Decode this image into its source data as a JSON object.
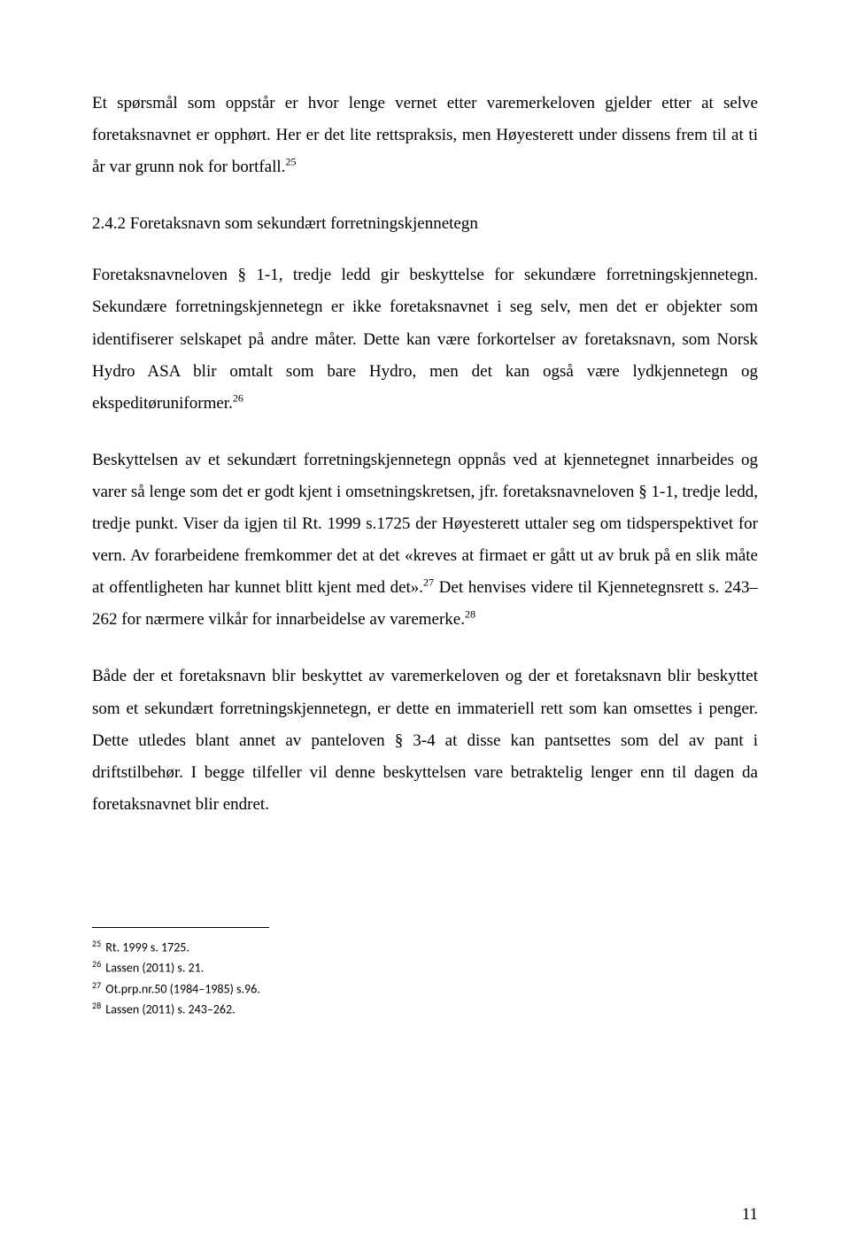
{
  "para1_part1": "Et spørsmål som oppstår er hvor lenge vernet etter varemerkeloven gjelder etter at selve foretaksnavnet er opphørt. Her er det lite rettspraksis, men Høyesterett under dissens frem til at ti år var grunn nok for bortfall.",
  "para1_sup": "25",
  "heading": "2.4.2 Foretaksnavn som sekundært forretningskjennetegn",
  "para2_part1": "Foretaksnavneloven § 1-1, tredje ledd gir beskyttelse for sekundære forretningskjennetegn. Sekundære forretningskjennetegn er ikke foretaksnavnet i seg selv, men det er objekter som identifiserer selskapet på andre måter. Dette kan være forkortelser av foretaksnavn, som Norsk Hydro ASA blir omtalt som bare Hydro, men det kan også være lydkjennetegn og ekspeditøruniformer.",
  "para2_sup": "26",
  "para3_part1": "Beskyttelsen av et sekundært forretningskjennetegn oppnås ved at kjennetegnet innarbeides og varer så lenge som det er godt kjent i omsetningskretsen, jfr. foretaksnavneloven § 1-1, tredje ledd, tredje punkt. Viser da igjen til Rt. 1999 s.1725 der Høyesterett uttaler seg om tidsperspektivet for vern. Av forarbeidene fremkommer det at det «kreves at firmaet er gått ut av bruk på en slik måte at offentligheten har kunnet blitt kjent med det».",
  "para3_sup1": "27",
  "para3_part2": " Det henvises videre til Kjennetegnsrett s. 243–262 for nærmere vilkår for innarbeidelse av varemerke.",
  "para3_sup2": "28",
  "para4": "Både der et foretaksnavn blir beskyttet av varemerkeloven og der et foretaksnavn blir beskyttet som et sekundært forretningskjennetegn, er dette en immateriell rett som kan omsettes i penger. Dette utledes blant annet av panteloven § 3-4 at disse kan pantsettes som del av pant i driftstilbehør. I begge tilfeller vil denne beskyttelsen vare betraktelig lenger enn til dagen da foretaksnavnet blir endret.",
  "fn25_num": "25",
  "fn25_text": " Rt. 1999 s. 1725.",
  "fn26_num": "26",
  "fn26_text": " Lassen (2011) s. 21.",
  "fn27_num": "27",
  "fn27_text": " Ot.prp.nr.50 (1984–1985) s.96.",
  "fn28_num": "28",
  "fn28_text": " Lassen (2011) s. 243–262.",
  "page_number": "11"
}
